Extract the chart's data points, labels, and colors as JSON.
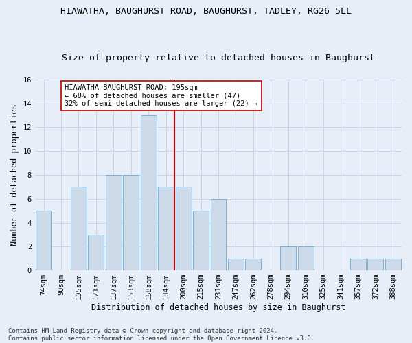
{
  "title": "HIAWATHA, BAUGHURST ROAD, BAUGHURST, TADLEY, RG26 5LL",
  "subtitle": "Size of property relative to detached houses in Baughurst",
  "xlabel": "Distribution of detached houses by size in Baughurst",
  "ylabel": "Number of detached properties",
  "categories": [
    "74sqm",
    "90sqm",
    "105sqm",
    "121sqm",
    "137sqm",
    "153sqm",
    "168sqm",
    "184sqm",
    "200sqm",
    "215sqm",
    "231sqm",
    "247sqm",
    "262sqm",
    "278sqm",
    "294sqm",
    "310sqm",
    "325sqm",
    "341sqm",
    "357sqm",
    "372sqm",
    "388sqm"
  ],
  "values": [
    5,
    0,
    7,
    3,
    8,
    8,
    13,
    7,
    7,
    5,
    6,
    1,
    1,
    0,
    2,
    2,
    0,
    0,
    1,
    1,
    1
  ],
  "bar_color": "#ccdaea",
  "bar_edge_color": "#6aaad4",
  "grid_color": "#c8d4e8",
  "vline_color": "#c00000",
  "annotation_text": "HIAWATHA BAUGHURST ROAD: 195sqm\n← 68% of detached houses are smaller (47)\n32% of semi-detached houses are larger (22) →",
  "annotation_box_color": "#ffffff",
  "annotation_box_edge": "#c00000",
  "ylim": [
    0,
    16
  ],
  "yticks": [
    0,
    2,
    4,
    6,
    8,
    10,
    12,
    14,
    16
  ],
  "footnote": "Contains HM Land Registry data © Crown copyright and database right 2024.\nContains public sector information licensed under the Open Government Licence v3.0.",
  "background_color": "#e8eef8",
  "title_fontsize": 9.5,
  "subtitle_fontsize": 9.5,
  "axis_label_fontsize": 8.5,
  "tick_fontsize": 7.5,
  "annotation_fontsize": 7.5,
  "footnote_fontsize": 6.5
}
